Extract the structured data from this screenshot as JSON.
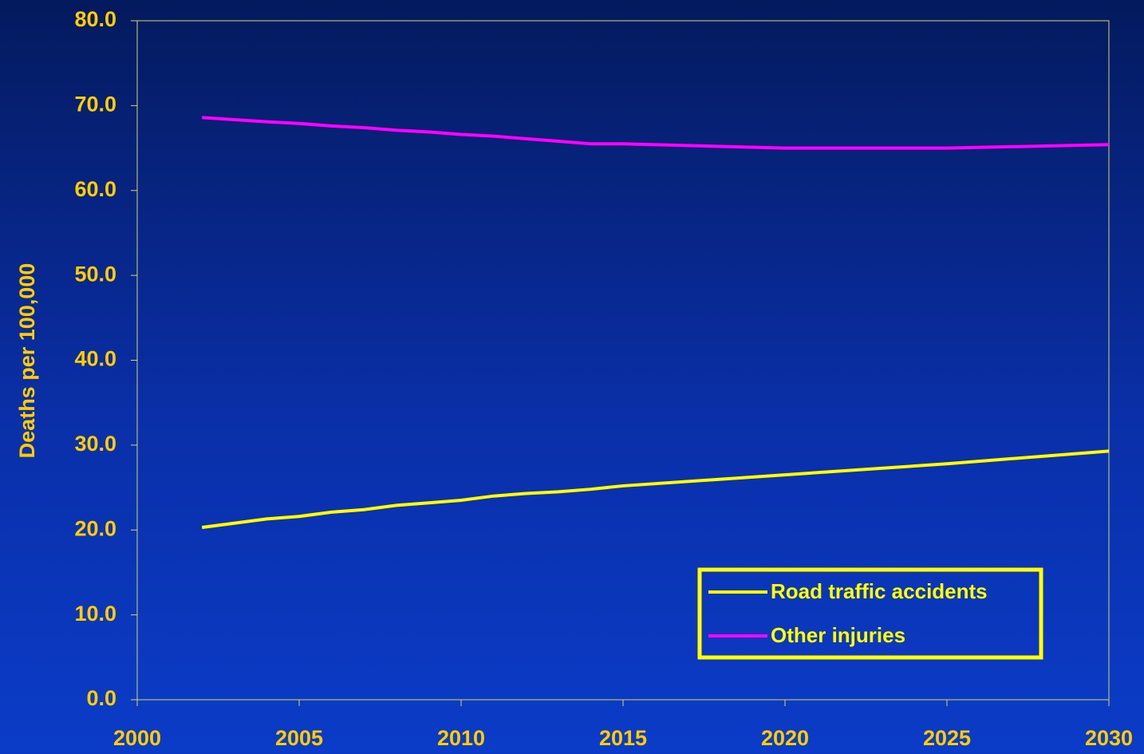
{
  "chart_data": {
    "type": "line",
    "y_label": "Deaths per 100,000",
    "x": [
      2002,
      2004,
      2005,
      2006,
      2007,
      2008,
      2009,
      2010,
      2011,
      2012,
      2013,
      2014,
      2015,
      2020,
      2025,
      2030
    ],
    "series": [
      {
        "name": "Road traffic accidents",
        "color": "#ffff00",
        "values": [
          20.3,
          21.3,
          21.6,
          22.1,
          22.4,
          22.9,
          23.2,
          23.5,
          24.0,
          24.3,
          24.5,
          24.8,
          25.2,
          26.5,
          27.8,
          29.3
        ]
      },
      {
        "name": "Other injuries",
        "color": "#ff00ff",
        "values": [
          68.6,
          68.1,
          67.9,
          67.6,
          67.4,
          67.1,
          66.9,
          66.6,
          66.4,
          66.1,
          65.8,
          65.5,
          65.5,
          65.0,
          65.0,
          65.4
        ]
      }
    ],
    "xlim": [
      2000,
      2030
    ],
    "xticks": [
      2000,
      2005,
      2010,
      2015,
      2020,
      2025,
      2030
    ],
    "ylim": [
      0,
      80
    ],
    "yticks": [
      {
        "value": 0,
        "label": "0.0"
      },
      {
        "value": 10,
        "label": "10.0"
      },
      {
        "value": 20,
        "label": "20.0"
      },
      {
        "value": 30,
        "label": "30.0"
      },
      {
        "value": 40,
        "label": "40.0"
      },
      {
        "value": 50,
        "label": "50.0"
      },
      {
        "value": 60,
        "label": "60.0"
      },
      {
        "value": 70,
        "label": "70.0"
      },
      {
        "value": 80,
        "label": "80.0"
      }
    ],
    "legend": "lower right"
  }
}
